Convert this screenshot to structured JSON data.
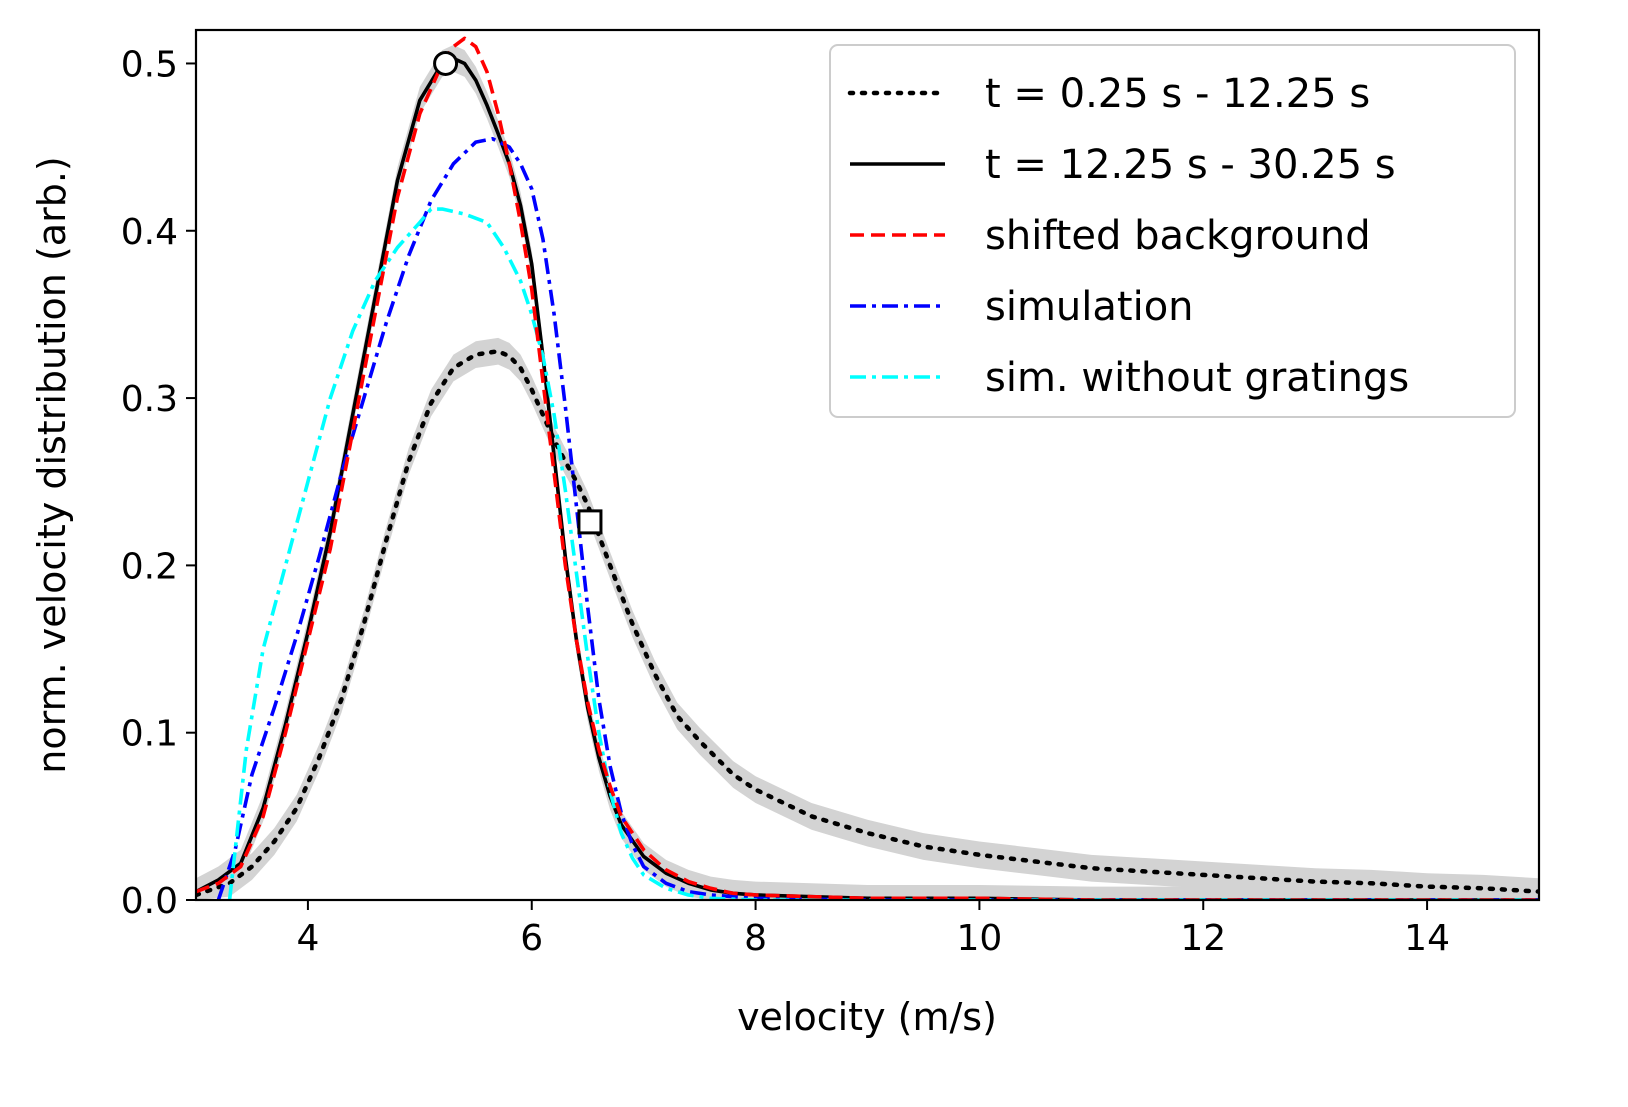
{
  "chart_data": {
    "type": "line",
    "title": "",
    "xlabel": "velocity (m/s)",
    "ylabel": "norm. velocity distribution (arb.)",
    "xlim": [
      3.0,
      15.0
    ],
    "ylim": [
      0.0,
      0.52
    ],
    "x_ticks": [
      4,
      6,
      8,
      10,
      12,
      14
    ],
    "x_tick_labels": [
      "4",
      "6",
      "8",
      "10",
      "12",
      "14"
    ],
    "y_ticks": [
      0.0,
      0.1,
      0.2,
      0.3,
      0.4,
      0.5
    ],
    "y_tick_labels": [
      "0.0",
      "0.1",
      "0.2",
      "0.3",
      "0.4",
      "0.5"
    ],
    "grid": false,
    "legend_position": "top-right",
    "series": [
      {
        "name": "t = 0.25 s - 12.25 s",
        "color": "#000000",
        "style": "dotted",
        "band": 0.008,
        "x": [
          3.0,
          3.3,
          3.5,
          3.7,
          3.9,
          4.1,
          4.3,
          4.5,
          4.7,
          4.9,
          5.1,
          5.3,
          5.5,
          5.7,
          5.8,
          5.9,
          6.0,
          6.1,
          6.2,
          6.3,
          6.4,
          6.5,
          6.7,
          6.9,
          7.1,
          7.3,
          7.5,
          7.8,
          8.0,
          8.5,
          9.0,
          9.5,
          10.0,
          10.5,
          11.0,
          11.5,
          12.0,
          12.5,
          13.0,
          13.5,
          14.0,
          14.5,
          15.0
        ],
        "y": [
          0.003,
          0.01,
          0.02,
          0.035,
          0.055,
          0.085,
          0.12,
          0.165,
          0.215,
          0.262,
          0.297,
          0.318,
          0.326,
          0.328,
          0.325,
          0.318,
          0.305,
          0.29,
          0.275,
          0.262,
          0.25,
          0.236,
          0.2,
          0.165,
          0.135,
          0.11,
          0.095,
          0.075,
          0.066,
          0.05,
          0.04,
          0.032,
          0.027,
          0.023,
          0.019,
          0.017,
          0.015,
          0.013,
          0.011,
          0.01,
          0.008,
          0.007,
          0.005
        ]
      },
      {
        "name": "t = 12.25 s - 30.25 s",
        "color": "#000000",
        "style": "solid",
        "band": 0.008,
        "x": [
          3.0,
          3.2,
          3.4,
          3.6,
          3.8,
          4.0,
          4.2,
          4.4,
          4.6,
          4.8,
          5.0,
          5.2,
          5.3,
          5.4,
          5.5,
          5.6,
          5.7,
          5.8,
          5.9,
          6.0,
          6.1,
          6.2,
          6.3,
          6.4,
          6.5,
          6.6,
          6.7,
          6.8,
          7.0,
          7.2,
          7.4,
          7.6,
          7.8,
          8.0,
          8.5,
          9.0,
          10.0,
          11.0,
          12.0,
          13.0,
          14.0,
          15.0
        ],
        "y": [
          0.005,
          0.012,
          0.022,
          0.055,
          0.105,
          0.16,
          0.22,
          0.29,
          0.36,
          0.43,
          0.478,
          0.5,
          0.503,
          0.5,
          0.49,
          0.475,
          0.458,
          0.44,
          0.415,
          0.38,
          0.325,
          0.265,
          0.205,
          0.155,
          0.115,
          0.085,
          0.062,
          0.045,
          0.026,
          0.016,
          0.01,
          0.006,
          0.004,
          0.003,
          0.002,
          0.001,
          0.001,
          0.0,
          0.0,
          0.0,
          0.0,
          0.0
        ]
      },
      {
        "name": "shifted background",
        "color": "#ff0000",
        "style": "dashed",
        "band": 0,
        "x": [
          3.0,
          3.2,
          3.4,
          3.6,
          3.8,
          4.0,
          4.2,
          4.4,
          4.6,
          4.8,
          5.0,
          5.2,
          5.3,
          5.4,
          5.5,
          5.6,
          5.7,
          5.8,
          5.9,
          6.0,
          6.1,
          6.2,
          6.3,
          6.4,
          6.5,
          6.6,
          6.7,
          6.8,
          7.0,
          7.2,
          7.4,
          7.6,
          7.8,
          8.0,
          8.5,
          9.0,
          10.0,
          11.0,
          12.0,
          13.0,
          14.0,
          15.0
        ],
        "y": [
          0.005,
          0.01,
          0.02,
          0.05,
          0.1,
          0.155,
          0.21,
          0.28,
          0.35,
          0.42,
          0.47,
          0.5,
          0.51,
          0.515,
          0.51,
          0.495,
          0.47,
          0.44,
          0.405,
          0.365,
          0.31,
          0.255,
          0.2,
          0.155,
          0.118,
          0.09,
          0.068,
          0.05,
          0.03,
          0.018,
          0.011,
          0.007,
          0.004,
          0.003,
          0.002,
          0.001,
          0.001,
          0.0,
          0.0,
          0.0,
          0.0,
          0.0
        ]
      },
      {
        "name": "simulation",
        "color": "#0000ff",
        "style": "dashdot",
        "band": 0,
        "x": [
          3.2,
          3.35,
          3.5,
          3.7,
          3.9,
          4.1,
          4.3,
          4.5,
          4.7,
          4.9,
          5.1,
          5.3,
          5.5,
          5.65,
          5.8,
          5.9,
          6.0,
          6.1,
          6.2,
          6.3,
          6.4,
          6.5,
          6.6,
          6.7,
          6.8,
          6.9,
          7.0,
          7.2,
          7.4,
          7.6,
          8.0,
          9.0,
          10.0,
          12.0,
          15.0
        ],
        "y": [
          0.0,
          0.03,
          0.075,
          0.115,
          0.158,
          0.205,
          0.255,
          0.3,
          0.345,
          0.385,
          0.418,
          0.44,
          0.453,
          0.455,
          0.45,
          0.44,
          0.425,
          0.395,
          0.35,
          0.295,
          0.235,
          0.175,
          0.12,
          0.08,
          0.052,
          0.033,
          0.02,
          0.01,
          0.005,
          0.003,
          0.001,
          0.0,
          0.0,
          0.0,
          0.0
        ]
      },
      {
        "name": "sim. without gratings",
        "color": "#00ffff",
        "style": "dashdot",
        "band": 0,
        "x": [
          3.3,
          3.45,
          3.6,
          3.8,
          4.0,
          4.2,
          4.4,
          4.6,
          4.8,
          5.0,
          5.1,
          5.2,
          5.4,
          5.6,
          5.75,
          5.9,
          6.0,
          6.1,
          6.2,
          6.3,
          6.4,
          6.5,
          6.6,
          6.7,
          6.8,
          6.9,
          7.0,
          7.2,
          7.4,
          7.6,
          8.0,
          9.0,
          10.0,
          12.0,
          15.0
        ],
        "y": [
          0.0,
          0.09,
          0.15,
          0.2,
          0.25,
          0.3,
          0.34,
          0.37,
          0.39,
          0.405,
          0.413,
          0.413,
          0.41,
          0.405,
          0.39,
          0.37,
          0.35,
          0.325,
          0.29,
          0.245,
          0.195,
          0.145,
          0.1,
          0.065,
          0.04,
          0.025,
          0.015,
          0.007,
          0.003,
          0.001,
          0.0,
          0.0,
          0.0,
          0.0,
          0.0
        ]
      }
    ],
    "markers": [
      {
        "shape": "circle",
        "x": 5.23,
        "y": 0.5
      },
      {
        "shape": "square",
        "x": 6.52,
        "y": 0.226
      }
    ]
  }
}
